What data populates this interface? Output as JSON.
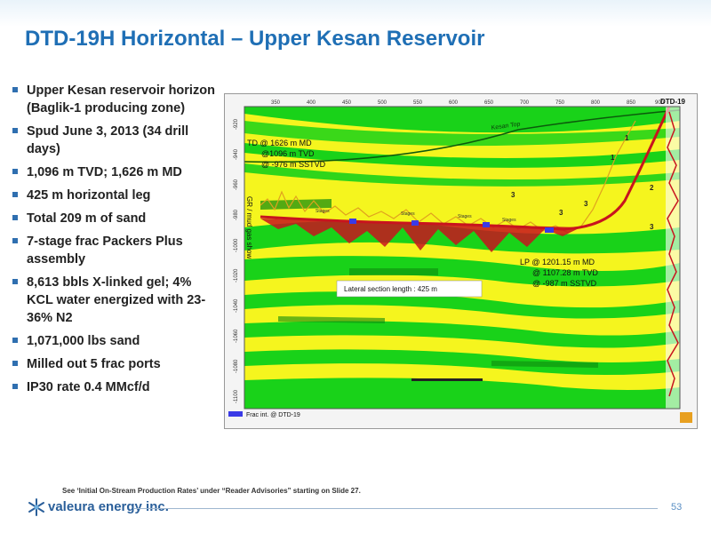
{
  "slide": {
    "title": "DTD-19H Horizontal – Upper Kesan Reservoir",
    "page_number": "53",
    "footnote": "See ‘Initial On-Stream Production Rates’ under “Reader Advisories” starting on Slide 27.",
    "logo_text": "valeura energy inc."
  },
  "bullets": [
    "Upper Kesan reservoir horizon (Baglik-1 producing zone)",
    "Spud June 3, 2013 (34 drill days)",
    "1,096 m TVD; 1,626 m MD",
    "425 m horizontal leg",
    "Total 209 m of sand",
    "7-stage frac Packers Plus assembly",
    "8,613 bbls X-linked gel; 4% KCL water energized with 23-36% N2",
    "1,071,000 lbs sand",
    "Milled out 5 frac ports",
    "IP30 rate 0.4 MMcf/d"
  ],
  "figure": {
    "well_label": "DTD-19",
    "horizon_label": "Kesan Top",
    "td_label": [
      "TD @ 1626 m MD",
      "@1096 m TVD",
      "@ -976 m SSTVD"
    ],
    "lp_label": [
      "LP @ 1201.15 m MD",
      "@ 1107.28 m TVD",
      "@ -987 m SSTVD"
    ],
    "lateral_label": "Lateral section length : 425 m",
    "gas_label": "GR / mud gas show",
    "legend_label": "Frac int. @ DTD-19",
    "stage_label": "Stages",
    "x_ticks": [
      "350",
      "400",
      "450",
      "500",
      "550",
      "600",
      "650",
      "700",
      "750",
      "800",
      "850",
      "900"
    ],
    "y_ticks": [
      "-920",
      "-940",
      "-960",
      "-980",
      "-1000",
      "-1020",
      "-1040",
      "-1060",
      "-1080",
      "-1100"
    ],
    "stage_numbers": [
      "1",
      "1",
      "2",
      "3",
      "3",
      "3",
      "3"
    ],
    "colors": {
      "green": "#19d219",
      "yellow": "#f5f51e",
      "dark_green": "#0e8a0e",
      "trajectory": "#c8141e",
      "frac_marker": "#3a3ae6"
    }
  }
}
